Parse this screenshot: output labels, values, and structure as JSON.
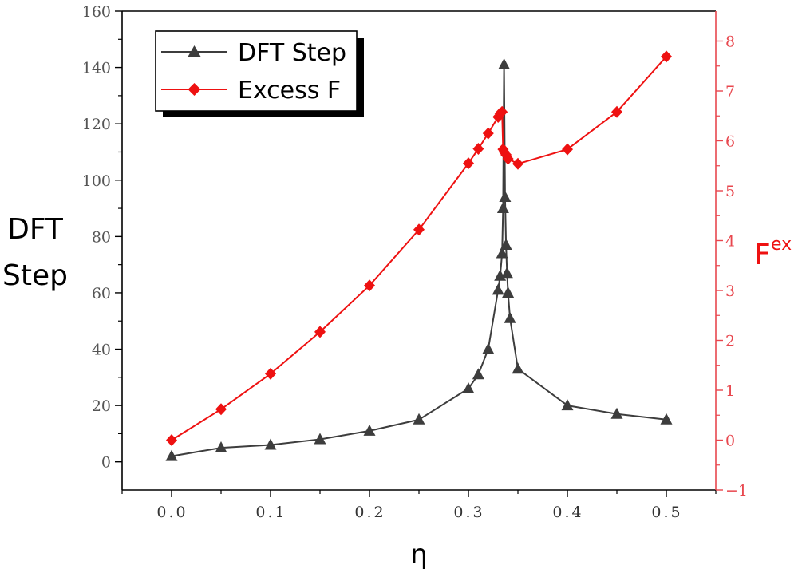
{
  "chart_data": {
    "type": "line",
    "xlabel": "η",
    "ylabel": "DFT Step",
    "ylabel_lines": [
      "DFT",
      "Step"
    ],
    "y2label_main": "F",
    "y2label_sup": "ex",
    "xlim": [
      -0.05,
      0.55
    ],
    "ylim": [
      -10,
      160
    ],
    "y2lim": [
      -1,
      8.6
    ],
    "x_ticks": [
      0.0,
      0.1,
      0.2,
      0.3,
      0.4,
      0.5
    ],
    "x_tick_labels": [
      "0.0",
      "0.1",
      "0.2",
      "0.3",
      "0.4",
      "0.5"
    ],
    "y_ticks": [
      0,
      20,
      40,
      60,
      80,
      100,
      120,
      140,
      160
    ],
    "y_tick_labels": [
      "0",
      "20",
      "40",
      "60",
      "80",
      "100",
      "120",
      "140",
      "160"
    ],
    "y2_ticks": [
      -1,
      0,
      1,
      2,
      3,
      4,
      5,
      6,
      7,
      8
    ],
    "y2_tick_labels": [
      "−1",
      "0",
      "1",
      "2",
      "3",
      "4",
      "5",
      "6",
      "7",
      "8"
    ],
    "grid": false,
    "legend_position": "top-left",
    "series": [
      {
        "name": "DFT Step",
        "axis": "left",
        "color": "#3d3d3d",
        "marker": "triangle",
        "x": [
          0.0,
          0.05,
          0.1,
          0.15,
          0.2,
          0.25,
          0.3,
          0.31,
          0.32,
          0.33,
          0.332,
          0.334,
          0.335,
          0.336,
          0.337,
          0.338,
          0.339,
          0.34,
          0.342,
          0.35,
          0.4,
          0.45,
          0.5
        ],
        "y": [
          2,
          5,
          6,
          8,
          11,
          15,
          26,
          31,
          40,
          61,
          66,
          74,
          90,
          141,
          94,
          77,
          67,
          60,
          51,
          33,
          20,
          17,
          15
        ]
      },
      {
        "name": "Excess F",
        "axis": "right",
        "color": "#ee1111",
        "marker": "diamond",
        "x": [
          0.0,
          0.05,
          0.1,
          0.15,
          0.2,
          0.25,
          0.3,
          0.31,
          0.32,
          0.33,
          0.332,
          0.334,
          0.335,
          0.336,
          0.338,
          0.34,
          0.35,
          0.4,
          0.45,
          0.5
        ],
        "y": [
          0.0,
          0.62,
          1.33,
          2.17,
          3.1,
          4.22,
          5.55,
          5.84,
          6.15,
          6.48,
          6.55,
          6.58,
          5.83,
          5.78,
          5.72,
          5.64,
          5.54,
          5.83,
          6.58,
          7.69
        ]
      }
    ]
  }
}
